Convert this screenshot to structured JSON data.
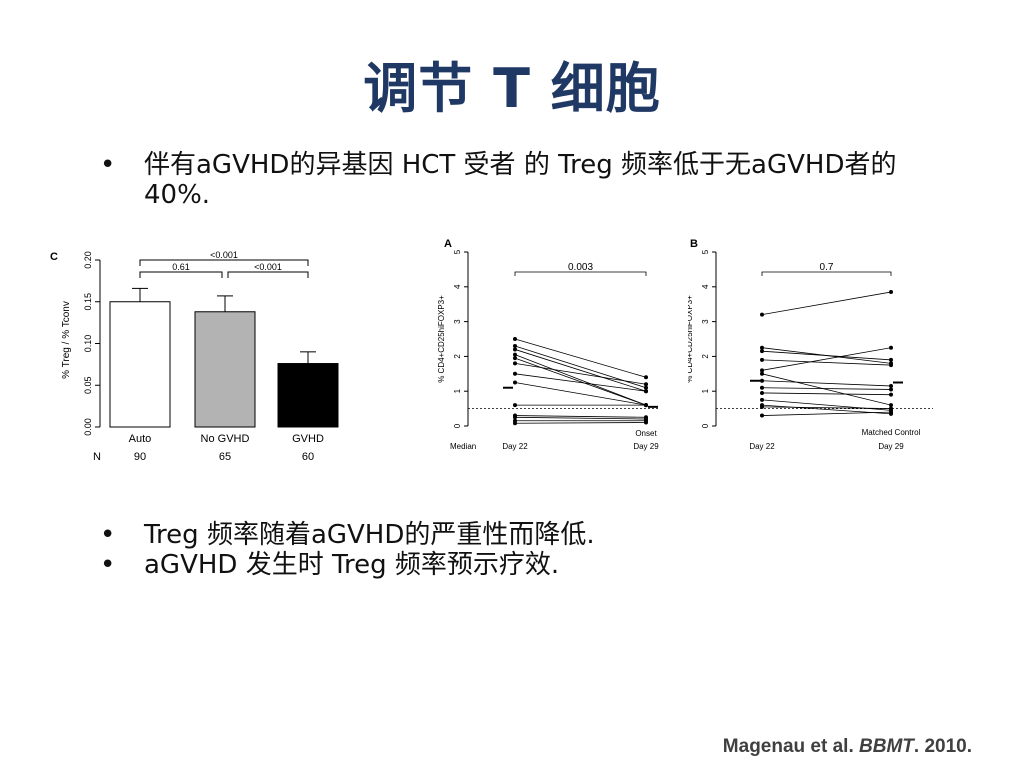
{
  "slide": {
    "title": "调节 T 细胞",
    "bullets_top": [
      "伴有aGVHD的异基因 HCT 受者 的 Treg 频率低于无aGVHD者的40%."
    ],
    "bullets_bottom": [
      "Treg 频率随着aGVHD的严重性而降低.",
      "aGVHD 发生时 Treg 频率预示疗效."
    ],
    "citation": {
      "authors": "Magenau et al. ",
      "journal": "BBMT",
      "year": ". 2010."
    }
  },
  "chart_data": [
    {
      "panel": "C",
      "type": "bar",
      "ylabel": "% Treg / % Tconv",
      "ylim": [
        0,
        0.2
      ],
      "yticks": [
        "0.00",
        "0.05",
        "0.10",
        "0.15",
        "0.20"
      ],
      "categories": [
        "Auto",
        "No GVHD",
        "GVHD"
      ],
      "values": [
        0.15,
        0.138,
        0.076
      ],
      "errors": [
        0.016,
        0.019,
        0.014
      ],
      "bar_colors": [
        "#ffffff",
        "#b3b3b3",
        "#000000"
      ],
      "n_label": "N",
      "n_values": [
        "90",
        "65",
        "60"
      ],
      "brackets": [
        {
          "from": 0,
          "to": 2,
          "label": "<0.001"
        },
        {
          "from": 0,
          "to": 1,
          "label": "0.61"
        },
        {
          "from": 1,
          "to": 2,
          "label": "<0.001"
        }
      ]
    },
    {
      "panel": "A",
      "type": "line",
      "ylabel": "% CD4+CD25hiFOXP3+",
      "ylim": [
        0,
        5
      ],
      "yticks": [
        "0",
        "1",
        "2",
        "3",
        "4",
        "5"
      ],
      "x_labels": [
        "Day 22",
        "Day 29"
      ],
      "x_sublabel": "Onset",
      "median_label": "Median",
      "pvalue": "0.003",
      "threshold": 0.5,
      "medians": [
        1.1,
        0.55
      ],
      "pairs": [
        [
          2.5,
          1.4
        ],
        [
          2.3,
          1.1
        ],
        [
          2.2,
          1.0
        ],
        [
          2.05,
          0.6
        ],
        [
          1.95,
          0.6
        ],
        [
          1.8,
          1.2
        ],
        [
          1.5,
          1.0
        ],
        [
          1.25,
          0.6
        ],
        [
          0.6,
          0.6
        ],
        [
          0.3,
          0.25
        ],
        [
          0.25,
          0.2
        ],
        [
          0.15,
          0.15
        ],
        [
          0.08,
          0.1
        ]
      ]
    },
    {
      "panel": "B",
      "type": "line",
      "ylabel": "% CD4+CD25hiFOXP3+",
      "ylim": [
        0,
        5
      ],
      "yticks": [
        "0",
        "1",
        "2",
        "3",
        "4",
        "5"
      ],
      "x_labels": [
        "Day 22",
        "Day 29"
      ],
      "x_sublabel": "Matched Control",
      "pvalue": "0.7",
      "threshold": 0.5,
      "medians": [
        1.3,
        1.25
      ],
      "pairs": [
        [
          3.2,
          3.85
        ],
        [
          2.25,
          1.8
        ],
        [
          2.15,
          1.9
        ],
        [
          1.9,
          1.75
        ],
        [
          1.6,
          2.25
        ],
        [
          1.5,
          0.6
        ],
        [
          1.3,
          1.15
        ],
        [
          1.1,
          1.05
        ],
        [
          0.95,
          0.9
        ],
        [
          0.75,
          0.45
        ],
        [
          0.6,
          0.35
        ],
        [
          0.55,
          0.5
        ],
        [
          0.3,
          0.4
        ]
      ]
    }
  ]
}
